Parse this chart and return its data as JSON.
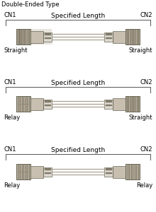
{
  "title": "Double-Ended Type",
  "background": "#ffffff",
  "diagrams": [
    {
      "cn1_label": "CN1",
      "cn2_label": "CN2",
      "mid_label": "Specified Length",
      "left_type": "Straight",
      "right_type": "Straight",
      "left_connector": "straight",
      "right_connector": "straight"
    },
    {
      "cn1_label": "CN1",
      "cn2_label": "CN2",
      "mid_label": "Specified Length",
      "left_type": "Relay",
      "right_type": "Straight",
      "left_connector": "relay",
      "right_connector": "straight"
    },
    {
      "cn1_label": "CN1",
      "cn2_label": "CN2",
      "mid_label": "Specified Length",
      "left_type": "Relay",
      "right_type": "Relay",
      "left_connector": "relay",
      "right_connector": "relay"
    }
  ],
  "connector_body_color": "#c8bfb0",
  "connector_dark_color": "#8a8070",
  "connector_mid_color": "#b0a898",
  "connector_light_color": "#ddd8d0",
  "connector_bg_color": "#e8e4de",
  "wire_color": "#aaa090",
  "border_color": "#666655",
  "text_color": "#000000",
  "bracket_color": "#555555",
  "ridge_dark": "#7a7060",
  "ridge_light": "#c0b8a8"
}
